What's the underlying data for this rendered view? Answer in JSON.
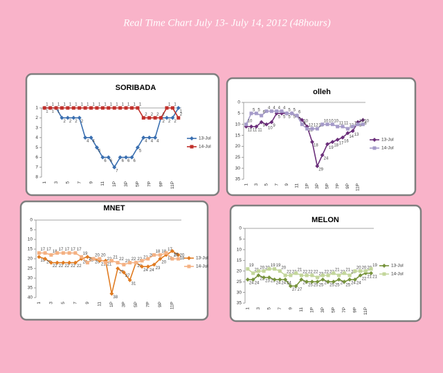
{
  "title": "Real Time Chart July 13- July 14, 2012 (48hours)",
  "chart_data": [
    {
      "type": "line",
      "title": "SORIBADA",
      "categories": [
        "1",
        null,
        "3",
        null,
        "5",
        null,
        "7",
        null,
        "9",
        null,
        "11",
        null,
        "1P",
        null,
        "3P",
        null,
        "5P",
        null,
        "7P",
        null,
        "9P",
        null,
        "11P",
        null
      ],
      "series": [
        {
          "name": "13-Jul",
          "color": "#3a6fb0",
          "marker": "diamond",
          "values": [
            1,
            1,
            1,
            2,
            2,
            2,
            2,
            4,
            4,
            5,
            6,
            6,
            7,
            6,
            6,
            6,
            5,
            4,
            4,
            4,
            2,
            2,
            2,
            1
          ]
        },
        {
          "name": "14-Jul",
          "color": "#c0302b",
          "marker": "square",
          "values": [
            1,
            1,
            1,
            1,
            1,
            1,
            1,
            1,
            1,
            1,
            1,
            1,
            1,
            1,
            1,
            1,
            1,
            2,
            2,
            2,
            2,
            1,
            1,
            2
          ]
        }
      ],
      "ylim": [
        1,
        8
      ],
      "yticks": [
        1,
        2,
        3,
        4,
        5,
        6,
        7,
        8
      ],
      "y_reversed": true
    },
    {
      "type": "line",
      "title": "olleh",
      "categories": [
        "1",
        null,
        "3",
        null,
        "5",
        null,
        "7",
        null,
        "9",
        null,
        "11",
        null,
        "1P",
        null,
        "3P",
        null,
        "5P",
        null,
        "7P",
        null,
        "9P",
        null,
        "11P",
        null
      ],
      "series": [
        {
          "name": "13-Jul",
          "color": "#6b2f7a",
          "marker": "diamond",
          "values": [
            11,
            11,
            11,
            9,
            10,
            9,
            5,
            5,
            5,
            5,
            6,
            8,
            11,
            18,
            29,
            24,
            19,
            18,
            17,
            16,
            14,
            13,
            9,
            8
          ]
        },
        {
          "name": "14-Jul",
          "color": "#a59bc9",
          "marker": "square",
          "values": [
            10,
            5,
            5,
            6,
            4,
            4,
            4,
            4,
            5,
            5,
            6,
            10,
            12,
            12,
            12,
            10,
            10,
            10,
            11,
            11,
            12,
            11,
            10,
            10
          ]
        }
      ],
      "ylim": [
        0,
        35
      ],
      "yticks": [
        0,
        5,
        10,
        15,
        20,
        25,
        30,
        35
      ],
      "y_reversed": true
    },
    {
      "type": "line",
      "title": "MNET",
      "categories": [
        "1",
        null,
        "3",
        null,
        "5",
        null,
        "7",
        null,
        "9",
        null,
        "11",
        null,
        "1P",
        null,
        "3P",
        null,
        "5P",
        null,
        "7P",
        null,
        "9P",
        null,
        "11P",
        null
      ],
      "series": [
        {
          "name": "13-Jul",
          "color": "#e07b21",
          "marker": "diamond",
          "values": [
            19,
            20,
            22,
            22,
            22,
            22,
            22,
            20,
            19,
            20,
            21,
            21,
            38,
            25,
            27,
            31,
            22,
            24,
            24,
            23,
            20,
            18,
            16,
            18
          ]
        },
        {
          "name": "14-Jul",
          "color": "#f4b183",
          "marker": "square",
          "values": [
            17,
            17,
            18,
            17,
            17,
            17,
            17,
            19,
            22,
            20,
            20,
            22,
            21,
            22,
            23,
            22,
            22,
            21,
            20,
            18,
            18,
            17,
            20,
            20
          ]
        }
      ],
      "ylim": [
        0,
        40
      ],
      "yticks": [
        0,
        5,
        10,
        15,
        20,
        25,
        30,
        35,
        40
      ],
      "y_reversed": true
    },
    {
      "type": "line",
      "title": "MELON",
      "categories": [
        "1",
        null,
        "3",
        null,
        "5",
        null,
        "7",
        null,
        "9",
        null,
        "11",
        null,
        "1P",
        null,
        "3P",
        null,
        "5P",
        null,
        "7P",
        null,
        "9P",
        null,
        "11P",
        null
      ],
      "series": [
        {
          "name": "13-Jul",
          "color": "#77933c",
          "marker": "diamond",
          "values": [
            24,
            24,
            22,
            23,
            23,
            24,
            24,
            24,
            27,
            27,
            24,
            25,
            25,
            25,
            24,
            25,
            25,
            24,
            25,
            24,
            24,
            22,
            21,
            21
          ]
        },
        {
          "name": "14-Jul",
          "color": "#c3d69b",
          "marker": "square",
          "values": [
            19,
            21,
            20,
            20,
            19,
            19,
            20,
            22,
            22,
            21,
            22,
            22,
            22,
            23,
            22,
            22,
            21,
            22,
            21,
            22,
            20,
            20,
            20,
            19
          ]
        }
      ],
      "ylim": [
        0,
        35
      ],
      "yticks": [
        0,
        5,
        10,
        15,
        20,
        25,
        30,
        35
      ],
      "y_reversed": true
    }
  ]
}
